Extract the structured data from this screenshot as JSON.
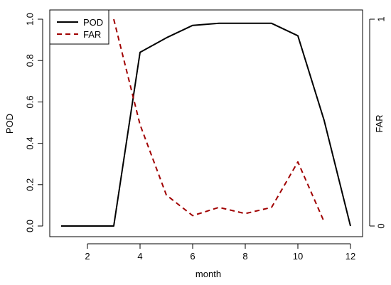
{
  "chart_data": {
    "type": "line",
    "xlabel": "month",
    "ylabel_left": "POD",
    "ylabel_right": "FAR",
    "x": [
      1,
      2,
      3,
      4,
      5,
      6,
      7,
      8,
      9,
      10,
      11,
      12
    ],
    "x_ticks": [
      2,
      4,
      6,
      8,
      10,
      12
    ],
    "xlim": [
      0.5,
      12.5
    ],
    "ylim_left": [
      0,
      1
    ],
    "y_ticks_left": [
      "0.0",
      "0.2",
      "0.4",
      "0.6",
      "0.8",
      "1.0"
    ],
    "ylim_right": [
      0,
      1
    ],
    "y_ticks_right": [
      "0",
      "1"
    ],
    "grid": false,
    "legend_position": "top-left",
    "series": [
      {
        "name": "POD",
        "axis": "left",
        "color": "#000000",
        "line_style": "solid",
        "x": [
          1,
          2,
          3,
          4,
          5,
          6,
          7,
          8,
          9,
          10,
          11,
          12
        ],
        "values": [
          0,
          0,
          0,
          0.84,
          0.91,
          0.97,
          0.98,
          0.98,
          0.98,
          0.92,
          0.51,
          0
        ]
      },
      {
        "name": "FAR",
        "axis": "right",
        "color": "#a00000",
        "line_style": "dashed",
        "x": [
          3,
          4,
          5,
          6,
          7,
          8,
          9,
          10,
          11
        ],
        "values": [
          1.0,
          0.49,
          0.15,
          0.05,
          0.09,
          0.06,
          0.09,
          0.31,
          0.02
        ]
      }
    ]
  }
}
